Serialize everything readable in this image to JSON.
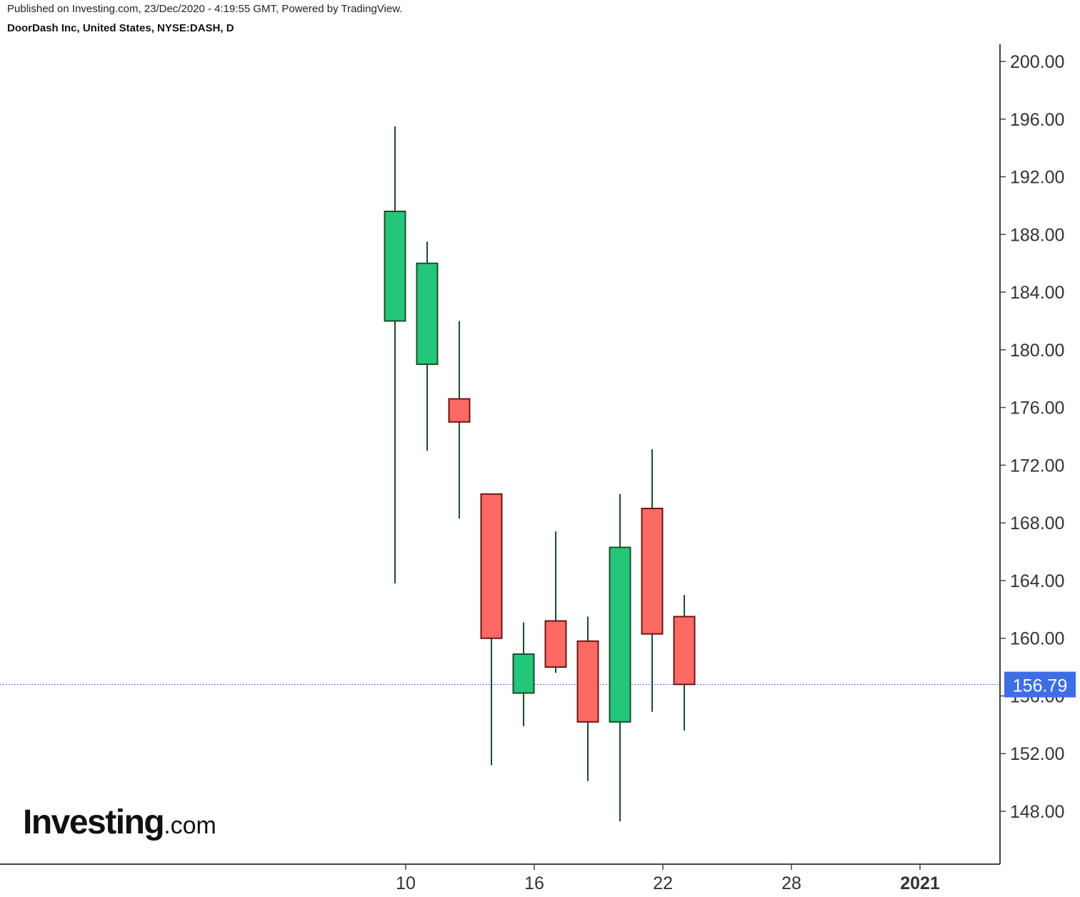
{
  "header": {
    "published": "Published on Investing.com, 23/Dec/2020 - 4:19:55 GMT, Powered by TradingView.",
    "symbol": "DoorDash Inc, United States, NYSE:DASH, D"
  },
  "logo": {
    "main": "Investing",
    "suffix": ".com"
  },
  "colors": {
    "up": "#22c77a",
    "down": "#fd6a63",
    "up_border": "#1b4d2c",
    "down_border": "#6b1616",
    "price_line": "#4a6fe0",
    "price_badge": "#3d6ee6",
    "axis": "#444444"
  },
  "chart_data": {
    "type": "candlestick",
    "title": "DoorDash Inc, United States, NYSE:DASH, D",
    "ylim": [
      143,
      201
    ],
    "y_ticks": [
      "148.00",
      "152.00",
      "156.00",
      "160.00",
      "164.00",
      "168.00",
      "172.00",
      "176.00",
      "180.00",
      "184.00",
      "188.00",
      "192.00",
      "196.00",
      "200.00"
    ],
    "x_ticks": [
      {
        "label": "10",
        "day": 10,
        "bold": false
      },
      {
        "label": "16",
        "day": 16,
        "bold": false
      },
      {
        "label": "22",
        "day": 22,
        "bold": false
      },
      {
        "label": "28",
        "day": 28,
        "bold": false
      },
      {
        "label": "2021",
        "day": 34,
        "bold": true
      }
    ],
    "last_price": 156.79,
    "last_price_label": "156.79",
    "candles": [
      {
        "day": 9.5,
        "open": 182.0,
        "high": 195.5,
        "low": 163.8,
        "close": 189.6
      },
      {
        "day": 11,
        "open": 179.0,
        "high": 187.5,
        "low": 173.0,
        "close": 186.0
      },
      {
        "day": 12.5,
        "open": 176.6,
        "high": 182.0,
        "low": 168.3,
        "close": 175.0
      },
      {
        "day": 14,
        "open": 170.0,
        "high": 170.0,
        "low": 151.2,
        "close": 160.0
      },
      {
        "day": 15.5,
        "open": 156.2,
        "high": 161.1,
        "low": 153.9,
        "close": 158.9
      },
      {
        "day": 17,
        "open": 161.2,
        "high": 167.4,
        "low": 157.6,
        "close": 158.0
      },
      {
        "day": 18.5,
        "open": 159.8,
        "high": 161.5,
        "low": 150.1,
        "close": 154.2
      },
      {
        "day": 20,
        "open": 154.2,
        "high": 170.0,
        "low": 147.3,
        "close": 166.3
      },
      {
        "day": 21.5,
        "open": 169.0,
        "high": 173.1,
        "low": 154.9,
        "close": 160.3
      },
      {
        "day": 23,
        "open": 161.5,
        "high": 163.0,
        "low": 153.6,
        "close": 156.8
      }
    ]
  }
}
